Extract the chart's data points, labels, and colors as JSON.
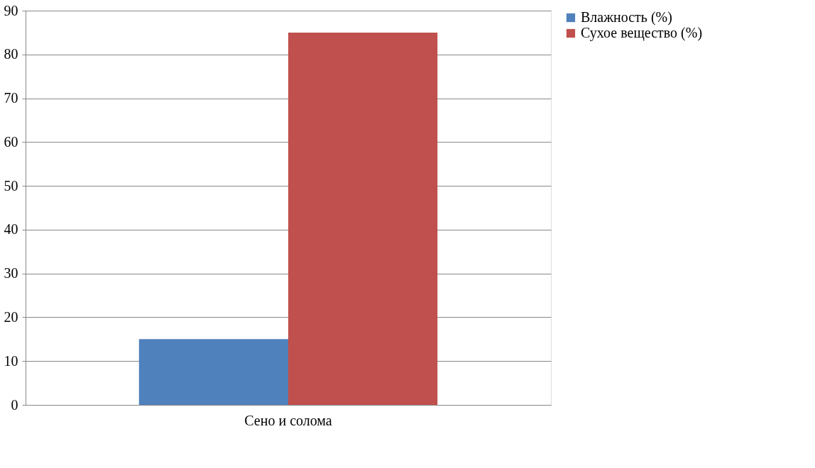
{
  "chart_data": {
    "type": "bar",
    "categories": [
      "Сено и солома"
    ],
    "series": [
      {
        "name": "Влажность (%)",
        "color": "#4f81bd",
        "values": [
          15
        ]
      },
      {
        "name": "Сухое вещество (%)",
        "color": "#c0504d",
        "values": [
          85
        ]
      }
    ],
    "ylim": [
      0,
      90
    ],
    "yticks": [
      0,
      10,
      20,
      30,
      40,
      50,
      60,
      70,
      80,
      90
    ],
    "grid": "y",
    "legend": "right"
  }
}
